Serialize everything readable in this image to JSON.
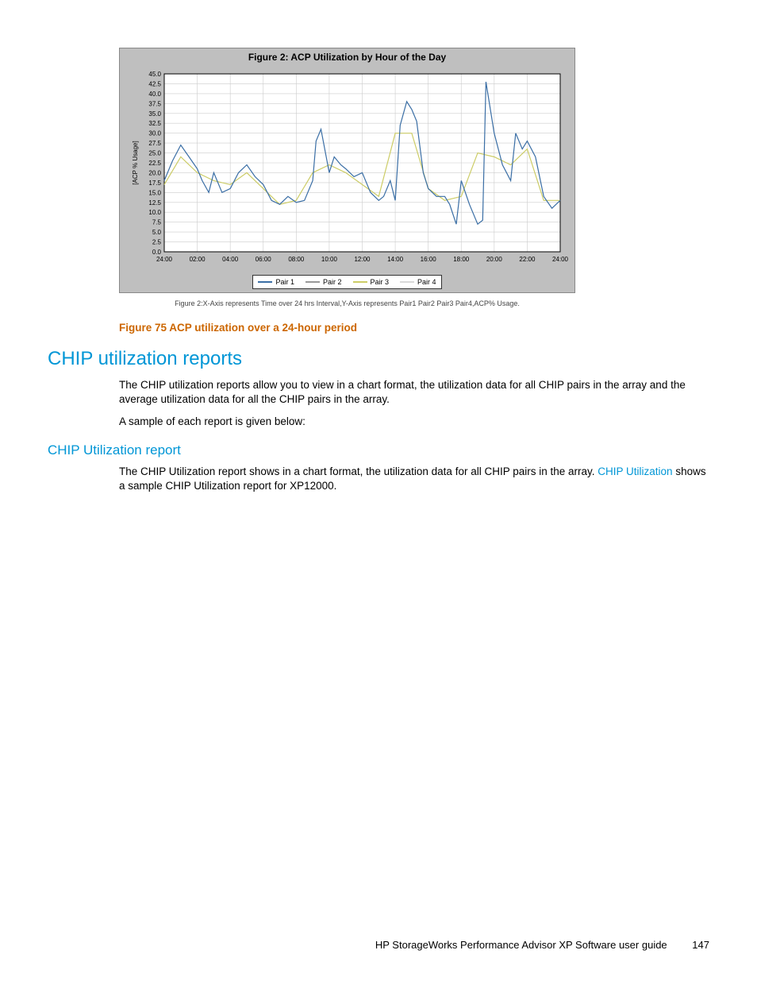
{
  "chart": {
    "type": "line",
    "title": "Figure 2: ACP Utilization by Hour of the Day",
    "sub_caption": "Figure 2:X-Axis represents Time over 24 hrs Interval,Y-Axis represents Pair1 Pair2 Pair3 Pair4,ACP% Usage.",
    "background_color": "#bfbfbf",
    "plot_background": "#ffffff",
    "grid_color": "#cccccc",
    "axis_color": "#000000",
    "title_fontsize": 12,
    "tick_fontsize": 8,
    "ylabel": "[ACP % Usage]",
    "ylabel_fontsize": 8,
    "ylim": [
      0,
      45
    ],
    "ytick_step": 2.5,
    "yticks": [
      "0.0",
      "2.5",
      "5.0",
      "7.5",
      "10.0",
      "12.5",
      "15.0",
      "17.5",
      "20.0",
      "22.5",
      "25.0",
      "27.5",
      "30.0",
      "32.5",
      "35.0",
      "37.5",
      "40.0",
      "42.5",
      "45.0"
    ],
    "xticks": [
      "24:00",
      "02:00",
      "04:00",
      "06:00",
      "08:00",
      "10:00",
      "12:00",
      "14:00",
      "16:00",
      "18:00",
      "20:00",
      "22:00",
      "24:00"
    ],
    "x_domain": [
      0,
      24
    ],
    "legend": [
      {
        "label": "Pair 1",
        "color": "#3a6ea5"
      },
      {
        "label": "Pair 2",
        "color": "#999999"
      },
      {
        "label": "Pair 3",
        "color": "#cccc66"
      },
      {
        "label": "Pair 4",
        "color": "#d9d9d9"
      }
    ],
    "line_width": 1.2,
    "series": {
      "pair1": {
        "color": "#3a6ea5",
        "x": [
          0,
          0.5,
          1,
          1.5,
          2,
          2.3,
          2.7,
          3,
          3.5,
          4,
          4.5,
          5,
          5.5,
          6,
          6.5,
          7,
          7.5,
          8,
          8.5,
          9,
          9.2,
          9.5,
          10,
          10.3,
          10.7,
          11,
          11.5,
          12,
          12.5,
          13,
          13.3,
          13.7,
          14,
          14.3,
          14.7,
          15,
          15.3,
          15.7,
          16,
          16.5,
          17,
          17.3,
          17.7,
          18,
          18.5,
          19,
          19.3,
          19.5,
          20,
          20.5,
          21,
          21.3,
          21.7,
          22,
          22.5,
          23,
          23.5,
          24
        ],
        "y": [
          18,
          23,
          27,
          24,
          21,
          18,
          15,
          20,
          15,
          16,
          20,
          22,
          19,
          17,
          13,
          12,
          14,
          12.5,
          13,
          18,
          28,
          31,
          20,
          24,
          22,
          21,
          19,
          20,
          15,
          13,
          14,
          18,
          13,
          32,
          38,
          36,
          33,
          20,
          16,
          14,
          14,
          12,
          7,
          18,
          12,
          7,
          8,
          43,
          30,
          22,
          18,
          30,
          26,
          28,
          24,
          14,
          11,
          13
        ]
      },
      "pair3": {
        "color": "#cccc66",
        "x": [
          0,
          1,
          2,
          3,
          4,
          5,
          6,
          7,
          8,
          9,
          10,
          11,
          12,
          13,
          14,
          15,
          16,
          17,
          18,
          19,
          20,
          21,
          22,
          23,
          24
        ],
        "y": [
          17,
          24,
          20,
          18,
          17,
          20,
          16,
          12,
          13,
          20,
          22,
          20,
          17,
          14,
          30,
          30,
          16,
          13,
          14,
          25,
          24,
          22,
          26,
          13,
          13
        ]
      }
    }
  },
  "figure_caption": "Figure 75 ACP utilization over a 24-hour period",
  "section_title": "CHIP utilization reports",
  "section_p1": "The CHIP utilization reports allow you to view in a chart format, the utilization data for all CHIP pairs in the array and the average utilization data for all the CHIP pairs in the array.",
  "section_p2": "A sample of each report is given below:",
  "subsection_title": "CHIP Utilization report",
  "sub_p1_a": "The CHIP Utilization report shows in a chart format, the utilization data for all CHIP pairs in the array. ",
  "sub_link_text": "CHIP Utilization",
  "sub_p1_b": " shows a sample CHIP Utilization report for XP12000.",
  "footer_text": "HP StorageWorks Performance Advisor XP Software user guide",
  "page_number": "147",
  "colors": {
    "accent_orange": "#cc6600",
    "accent_blue": "#0096d6",
    "text": "#000000"
  }
}
